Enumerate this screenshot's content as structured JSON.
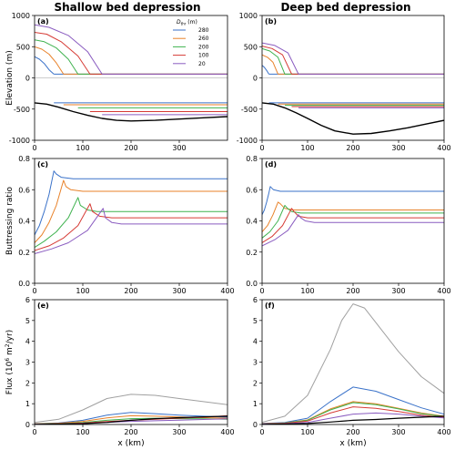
{
  "figure": {
    "col_titles": [
      "Shallow bed depression",
      "Deep bed depression"
    ]
  },
  "colors": {
    "280": "#3a72c9",
    "260": "#e8822a",
    "200": "#3fb24f",
    "100": "#d63b35",
    "20": "#8a5cc0",
    "bed": "#000000",
    "zero": "#bdbdbd",
    "extra": "#a0a0a0"
  },
  "legend": {
    "title": "D_thr (m)",
    "entries": [
      "280",
      "260",
      "200",
      "100",
      "20"
    ]
  },
  "chart_data": [
    {
      "type": "line",
      "panel": "(a)",
      "col": 0,
      "row": 0,
      "title": "Shallow bed depression",
      "xlabel": "",
      "ylabel": "Elevation (m)",
      "xlim": [
        0,
        400
      ],
      "ylim": [
        -1000,
        1000
      ],
      "xticks": [
        0,
        100,
        200,
        300
      ],
      "yticks": [
        -1000,
        -500,
        0,
        500,
        1000
      ],
      "series": [
        {
          "key": "280",
          "name": "280",
          "x": [
            0,
            10,
            20,
            30,
            40
          ],
          "y": [
            340,
            300,
            230,
            130,
            60
          ],
          "x2": [
            40,
            400
          ],
          "y2": [
            60,
            60
          ],
          "shelf": -400
        },
        {
          "key": "260",
          "name": "260",
          "x": [
            0,
            15,
            30,
            45,
            60
          ],
          "y": [
            500,
            460,
            380,
            240,
            60
          ],
          "x2": [
            60,
            400
          ],
          "y2": [
            60,
            60
          ],
          "shelf": -430
        },
        {
          "key": "200",
          "name": "200",
          "x": [
            0,
            20,
            45,
            70,
            90
          ],
          "y": [
            610,
            580,
            480,
            300,
            60
          ],
          "x2": [
            90,
            400
          ],
          "y2": [
            60,
            60
          ],
          "shelf": -480
        },
        {
          "key": "100",
          "name": "100",
          "x": [
            0,
            25,
            55,
            90,
            115
          ],
          "y": [
            730,
            700,
            580,
            350,
            60
          ],
          "x2": [
            115,
            400
          ],
          "y2": [
            60,
            60
          ],
          "shelf": -540
        },
        {
          "key": "20",
          "name": "20",
          "x": [
            0,
            30,
            70,
            110,
            140
          ],
          "y": [
            850,
            810,
            680,
            420,
            60
          ],
          "x2": [
            140,
            400
          ],
          "y2": [
            60,
            60
          ],
          "shelf": -590
        }
      ],
      "bed": {
        "x": [
          0,
          25,
          50,
          80,
          110,
          140,
          170,
          200,
          250,
          300,
          350,
          400
        ],
        "y": [
          -400,
          -420,
          -470,
          -540,
          -600,
          -650,
          -680,
          -690,
          -680,
          -660,
          -640,
          -620
        ]
      }
    },
    {
      "type": "line",
      "panel": "(b)",
      "col": 1,
      "row": 0,
      "title": "Deep bed depression",
      "xlabel": "",
      "ylabel": "",
      "xlim": [
        0,
        400
      ],
      "ylim": [
        -1000,
        1000
      ],
      "xticks": [
        0,
        100,
        200,
        300,
        400
      ],
      "yticks": [
        -1000,
        -500,
        0,
        500,
        1000
      ],
      "series": [
        {
          "key": "280",
          "name": "280",
          "x": [
            0,
            5,
            10,
            15
          ],
          "y": [
            200,
            170,
            120,
            60
          ],
          "x2": [
            15,
            400
          ],
          "y2": [
            60,
            60
          ],
          "shelf": -400
        },
        {
          "key": "260",
          "name": "260",
          "x": [
            0,
            12,
            24,
            35
          ],
          "y": [
            370,
            330,
            250,
            60
          ],
          "x2": [
            35,
            400
          ],
          "y2": [
            60,
            60
          ],
          "shelf": -420
        },
        {
          "key": "200",
          "name": "200",
          "x": [
            0,
            17,
            35,
            50
          ],
          "y": [
            470,
            430,
            330,
            60
          ],
          "x2": [
            50,
            400
          ],
          "y2": [
            60,
            60
          ],
          "shelf": -440
        },
        {
          "key": "100",
          "name": "100",
          "x": [
            0,
            22,
            45,
            65
          ],
          "y": [
            510,
            470,
            370,
            60
          ],
          "x2": [
            65,
            400
          ],
          "y2": [
            60,
            60
          ],
          "shelf": -460
        },
        {
          "key": "20",
          "name": "20",
          "x": [
            0,
            28,
            57,
            80
          ],
          "y": [
            560,
            520,
            400,
            60
          ],
          "x2": [
            80,
            400
          ],
          "y2": [
            60,
            60
          ],
          "shelf": -480
        }
      ],
      "bed": {
        "x": [
          0,
          25,
          50,
          75,
          100,
          130,
          160,
          200,
          240,
          280,
          320,
          360,
          400
        ],
        "y": [
          -400,
          -420,
          -480,
          -560,
          -650,
          -760,
          -850,
          -900,
          -890,
          -850,
          -800,
          -740,
          -680
        ]
      }
    },
    {
      "type": "line",
      "panel": "(c)",
      "col": 0,
      "row": 1,
      "xlabel": "",
      "ylabel": "Buttressing ratio",
      "xlim": [
        0,
        400
      ],
      "ylim": [
        0,
        0.8
      ],
      "xticks": [
        0,
        100,
        200,
        300,
        400
      ],
      "yticks": [
        0.0,
        0.2,
        0.4,
        0.6,
        0.8
      ],
      "series": [
        {
          "key": "280",
          "name": "280",
          "x": [
            0,
            10,
            20,
            30,
            40,
            45,
            55,
            80,
            400
          ],
          "y": [
            0.31,
            0.37,
            0.46,
            0.57,
            0.72,
            0.7,
            0.68,
            0.67,
            0.67
          ]
        },
        {
          "key": "260",
          "name": "260",
          "x": [
            0,
            15,
            30,
            45,
            60,
            65,
            75,
            100,
            400
          ],
          "y": [
            0.26,
            0.31,
            0.39,
            0.5,
            0.66,
            0.62,
            0.6,
            0.59,
            0.59
          ]
        },
        {
          "key": "200",
          "name": "200",
          "x": [
            0,
            20,
            45,
            70,
            90,
            95,
            110,
            130,
            400
          ],
          "y": [
            0.23,
            0.27,
            0.33,
            0.42,
            0.55,
            0.5,
            0.47,
            0.46,
            0.46
          ]
        },
        {
          "key": "100",
          "name": "100",
          "x": [
            0,
            30,
            60,
            90,
            115,
            120,
            135,
            160,
            400
          ],
          "y": [
            0.21,
            0.24,
            0.29,
            0.37,
            0.51,
            0.46,
            0.43,
            0.42,
            0.42
          ]
        },
        {
          "key": "20",
          "name": "20",
          "x": [
            0,
            35,
            70,
            110,
            142,
            147,
            160,
            180,
            400
          ],
          "y": [
            0.19,
            0.22,
            0.26,
            0.34,
            0.48,
            0.42,
            0.39,
            0.38,
            0.38
          ]
        }
      ]
    },
    {
      "type": "line",
      "panel": "(d)",
      "col": 1,
      "row": 1,
      "xlabel": "",
      "ylabel": "",
      "xlim": [
        0,
        400
      ],
      "ylim": [
        0,
        0.8
      ],
      "xticks": [
        0,
        100,
        200,
        300,
        400
      ],
      "yticks": [
        0.0,
        0.2,
        0.4,
        0.6,
        0.8
      ],
      "series": [
        {
          "key": "280",
          "name": "280",
          "x": [
            0,
            5,
            10,
            15,
            18,
            25,
            40,
            400
          ],
          "y": [
            0.44,
            0.47,
            0.52,
            0.58,
            0.62,
            0.6,
            0.59,
            0.59
          ]
        },
        {
          "key": "260",
          "name": "260",
          "x": [
            0,
            12,
            24,
            35,
            40,
            50,
            70,
            400
          ],
          "y": [
            0.33,
            0.37,
            0.44,
            0.52,
            0.51,
            0.48,
            0.47,
            0.47
          ]
        },
        {
          "key": "200",
          "name": "200",
          "x": [
            0,
            17,
            35,
            50,
            56,
            65,
            85,
            400
          ],
          "y": [
            0.29,
            0.33,
            0.4,
            0.5,
            0.48,
            0.46,
            0.45,
            0.45
          ]
        },
        {
          "key": "100",
          "name": "100",
          "x": [
            0,
            22,
            45,
            65,
            70,
            80,
            100,
            400
          ],
          "y": [
            0.26,
            0.3,
            0.37,
            0.48,
            0.46,
            0.43,
            0.42,
            0.42
          ]
        },
        {
          "key": "20",
          "name": "20",
          "x": [
            0,
            28,
            57,
            80,
            85,
            95,
            115,
            400
          ],
          "y": [
            0.24,
            0.28,
            0.34,
            0.44,
            0.42,
            0.4,
            0.39,
            0.39
          ]
        }
      ]
    },
    {
      "type": "line",
      "panel": "(e)",
      "col": 0,
      "row": 2,
      "xlabel": "x (km)",
      "ylabel": "Flux (10^6 m^2/yr)",
      "xlim": [
        0,
        400
      ],
      "ylim": [
        0,
        6
      ],
      "xticks": [
        0,
        100,
        200,
        300,
        400
      ],
      "yticks": [
        0,
        1,
        2,
        3,
        4,
        5,
        6
      ],
      "series": [
        {
          "key": "extra",
          "x": [
            0,
            50,
            100,
            150,
            200,
            250,
            300,
            350,
            400
          ],
          "y": [
            0.1,
            0.25,
            0.7,
            1.25,
            1.45,
            1.4,
            1.25,
            1.1,
            0.95
          ]
        },
        {
          "key": "280",
          "name": "280",
          "x": [
            0,
            50,
            100,
            150,
            200,
            250,
            300,
            350,
            400
          ],
          "y": [
            0.04,
            0.08,
            0.2,
            0.45,
            0.58,
            0.52,
            0.45,
            0.4,
            0.35
          ]
        },
        {
          "key": "260",
          "name": "260",
          "x": [
            0,
            50,
            100,
            150,
            200,
            250,
            300,
            350,
            400
          ],
          "y": [
            0.03,
            0.06,
            0.15,
            0.32,
            0.42,
            0.4,
            0.36,
            0.33,
            0.3
          ]
        },
        {
          "key": "200",
          "name": "200",
          "x": [
            0,
            50,
            100,
            150,
            200,
            250,
            300,
            350,
            400
          ],
          "y": [
            0.02,
            0.04,
            0.1,
            0.2,
            0.28,
            0.3,
            0.28,
            0.27,
            0.25
          ]
        },
        {
          "key": "100",
          "name": "100",
          "x": [
            0,
            50,
            100,
            150,
            200,
            250,
            300,
            350,
            400
          ],
          "y": [
            0.01,
            0.03,
            0.07,
            0.14,
            0.2,
            0.25,
            0.3,
            0.35,
            0.42
          ]
        },
        {
          "key": "20",
          "name": "20",
          "x": [
            0,
            50,
            100,
            150,
            200,
            250,
            300,
            350,
            400
          ],
          "y": [
            0.01,
            0.02,
            0.05,
            0.1,
            0.15,
            0.18,
            0.21,
            0.24,
            0.27
          ]
        },
        {
          "key": "bed",
          "x": [
            0,
            50,
            100,
            150,
            200,
            250,
            300,
            350,
            400
          ],
          "y": [
            0.01,
            0.02,
            0.04,
            0.1,
            0.2,
            0.28,
            0.33,
            0.37,
            0.4
          ]
        }
      ]
    },
    {
      "type": "line",
      "panel": "(f)",
      "col": 1,
      "row": 2,
      "xlabel": "x (km)",
      "ylabel": "",
      "xlim": [
        0,
        400
      ],
      "ylim": [
        0,
        6
      ],
      "xticks": [
        0,
        100,
        200,
        300,
        400
      ],
      "yticks": [
        0,
        1,
        2,
        3,
        4,
        5,
        6
      ],
      "series": [
        {
          "key": "extra",
          "x": [
            0,
            50,
            100,
            150,
            175,
            200,
            225,
            250,
            300,
            350,
            400
          ],
          "y": [
            0.1,
            0.4,
            1.4,
            3.6,
            5.0,
            5.8,
            5.6,
            4.9,
            3.5,
            2.3,
            1.5
          ]
        },
        {
          "key": "280",
          "name": "280",
          "x": [
            0,
            50,
            100,
            150,
            200,
            250,
            300,
            350,
            400
          ],
          "y": [
            0.05,
            0.1,
            0.3,
            1.1,
            1.8,
            1.6,
            1.2,
            0.8,
            0.5
          ]
        },
        {
          "key": "260",
          "name": "260",
          "x": [
            0,
            50,
            100,
            150,
            200,
            250,
            300,
            350,
            400
          ],
          "y": [
            0.04,
            0.08,
            0.22,
            0.75,
            1.1,
            1.0,
            0.78,
            0.55,
            0.4
          ]
        },
        {
          "key": "200",
          "name": "200",
          "x": [
            0,
            50,
            100,
            150,
            200,
            250,
            300,
            350,
            400
          ],
          "y": [
            0.04,
            0.08,
            0.2,
            0.7,
            1.05,
            0.95,
            0.75,
            0.52,
            0.38
          ]
        },
        {
          "key": "100",
          "name": "100",
          "x": [
            0,
            50,
            100,
            150,
            200,
            250,
            300,
            350,
            400
          ],
          "y": [
            0.03,
            0.06,
            0.16,
            0.55,
            0.85,
            0.78,
            0.62,
            0.45,
            0.34
          ]
        },
        {
          "key": "20",
          "name": "20",
          "x": [
            0,
            50,
            100,
            150,
            200,
            250,
            300,
            350,
            400
          ],
          "y": [
            0.02,
            0.04,
            0.1,
            0.3,
            0.5,
            0.55,
            0.5,
            0.4,
            0.32
          ]
        },
        {
          "key": "bed",
          "x": [
            0,
            50,
            100,
            150,
            200,
            250,
            300,
            350,
            400
          ],
          "y": [
            0.01,
            0.02,
            0.05,
            0.12,
            0.2,
            0.24,
            0.3,
            0.35,
            0.4
          ]
        }
      ]
    }
  ]
}
